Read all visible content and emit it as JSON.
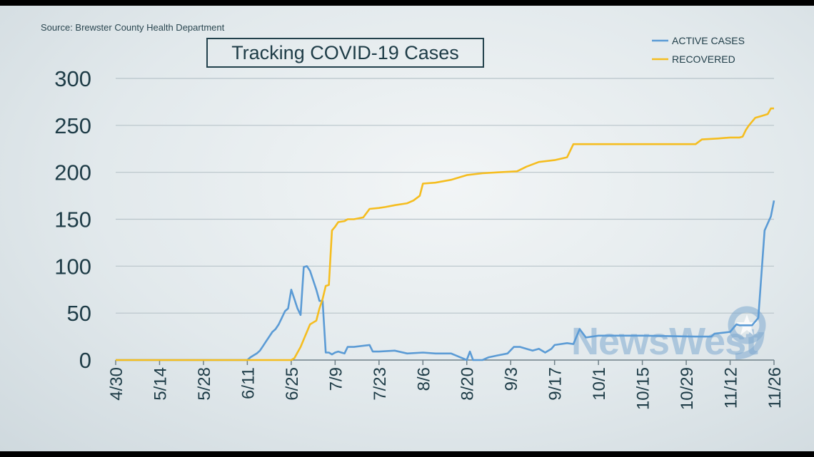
{
  "source": "Source: Brewster County Health Department",
  "watermark": "NewsWest",
  "colors": {
    "active": "#5b9bd5",
    "recovered": "#f5bd1f",
    "grid": "#b8c4ca",
    "text": "#1e3c47"
  },
  "chart_data": {
    "type": "line",
    "title": "Tracking COVID-19 Cases",
    "legend_position": "top-right",
    "grid": true,
    "ylim": [
      0,
      300
    ],
    "yticks": [
      0,
      50,
      100,
      150,
      200,
      250,
      300
    ],
    "ytick_labels": [
      "0",
      "50",
      "100",
      "150",
      "200",
      "250",
      "300"
    ],
    "xticks": [
      "4/30",
      "5/14",
      "5/28",
      "6/11",
      "6/25",
      "7/9",
      "7/23",
      "8/6",
      "8/20",
      "9/3",
      "9/17",
      "10/1",
      "10/15",
      "10/29",
      "11/12",
      "11/26"
    ],
    "series": [
      {
        "name": "ACTIVE CASES",
        "color": "#5b9bd5",
        "x": [
          "4/30",
          "6/11",
          "6/12",
          "6/13",
          "6/14",
          "6/15",
          "6/16",
          "6/17",
          "6/18",
          "6/19",
          "6/20",
          "6/21",
          "6/22",
          "6/23",
          "6/24",
          "6/25",
          "6/26",
          "6/27",
          "6/28",
          "6/29",
          "6/30",
          "7/1",
          "7/2",
          "7/3",
          "7/4",
          "7/5",
          "7/6",
          "7/7",
          "7/8",
          "7/9",
          "7/10",
          "7/11",
          "7/12",
          "7/13",
          "7/14",
          "7/15",
          "7/20",
          "7/21",
          "7/22",
          "7/23",
          "7/28",
          "8/1",
          "8/6",
          "8/10",
          "8/15",
          "8/20",
          "8/21",
          "8/22",
          "8/25",
          "8/27",
          "8/30",
          "9/2",
          "9/4",
          "9/6",
          "9/8",
          "9/10",
          "9/12",
          "9/14",
          "9/16",
          "9/17",
          "9/21",
          "9/23",
          "9/25",
          "9/27",
          "10/1",
          "10/10",
          "10/15",
          "11/1",
          "11/3",
          "11/6",
          "11/7",
          "11/12",
          "11/14",
          "11/15",
          "11/16",
          "11/17",
          "11/19",
          "11/21",
          "11/23",
          "11/25",
          "11/26"
        ],
        "y": [
          0,
          0,
          3,
          5,
          7,
          10,
          15,
          20,
          25,
          30,
          33,
          38,
          45,
          52,
          55,
          75,
          65,
          55,
          48,
          99,
          100,
          95,
          85,
          75,
          63,
          63,
          8,
          8,
          6,
          8,
          9,
          8,
          7,
          14,
          14,
          14,
          16,
          9,
          9,
          9,
          10,
          7,
          8,
          7,
          7,
          0,
          9,
          0,
          0,
          3,
          5,
          7,
          14,
          14,
          12,
          10,
          12,
          8,
          12,
          16,
          18,
          17,
          33,
          24,
          26,
          26,
          26,
          25,
          25,
          25,
          28,
          30,
          38,
          37,
          37,
          37,
          37,
          45,
          138,
          153,
          170
        ]
      },
      {
        "name": "RECOVERED",
        "color": "#f5bd1f",
        "x": [
          "4/30",
          "6/25",
          "6/26",
          "6/27",
          "6/28",
          "6/29",
          "6/30",
          "7/1",
          "7/2",
          "7/3",
          "7/4",
          "7/5",
          "7/6",
          "7/7",
          "7/8",
          "7/9",
          "7/10",
          "7/12",
          "7/13",
          "7/15",
          "7/18",
          "7/20",
          "7/23",
          "7/25",
          "7/28",
          "8/1",
          "8/3",
          "8/5",
          "8/6",
          "8/10",
          "8/15",
          "8/20",
          "8/25",
          "8/30",
          "9/5",
          "9/8",
          "9/12",
          "9/17",
          "9/21",
          "9/23",
          "9/25",
          "10/1",
          "10/10",
          "10/20",
          "11/1",
          "11/3",
          "11/8",
          "11/12",
          "11/14",
          "11/15",
          "11/16",
          "11/17",
          "11/18",
          "11/20",
          "11/22",
          "11/24",
          "11/25",
          "11/26"
        ],
        "y": [
          0,
          0,
          2,
          8,
          14,
          22,
          30,
          38,
          40,
          42,
          55,
          65,
          79,
          80,
          138,
          142,
          147,
          148,
          150,
          150,
          152,
          161,
          162,
          163,
          165,
          167,
          170,
          175,
          188,
          189,
          192,
          197,
          199,
          200,
          201,
          206,
          211,
          213,
          216,
          230,
          230,
          230,
          230,
          230,
          230,
          235,
          236,
          237,
          237,
          237,
          238,
          245,
          250,
          258,
          260,
          262,
          268,
          268
        ]
      }
    ]
  }
}
